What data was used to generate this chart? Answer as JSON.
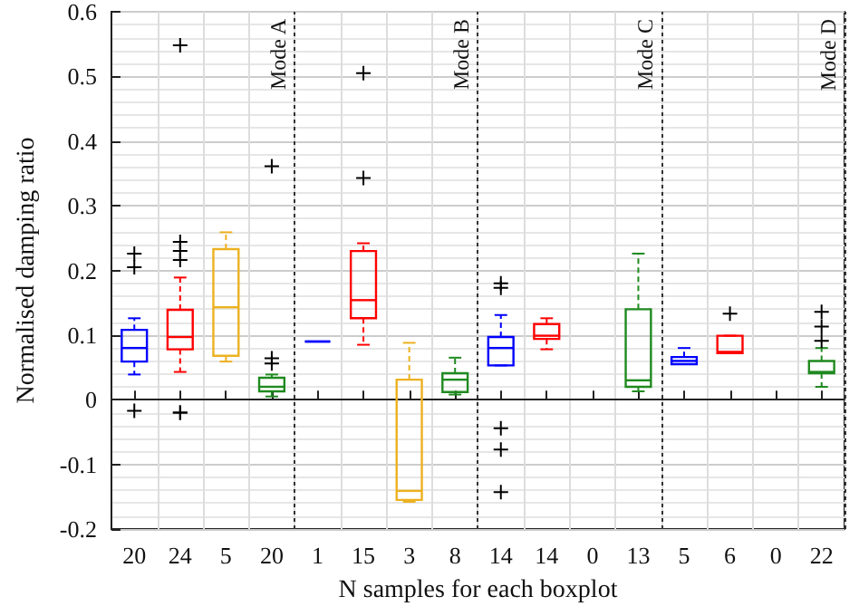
{
  "chart_data": {
    "type": "box",
    "ylabel": "Normalised damping ratio",
    "xlabel": "N samples for each boxplot",
    "ylim": [
      -0.2,
      0.6
    ],
    "yticks": [
      -0.2,
      -0.1,
      0,
      0.1,
      0.2,
      0.3,
      0.4,
      0.5,
      0.6
    ],
    "categories": [
      "20",
      "24",
      "5",
      "20",
      "1",
      "15",
      "3",
      "8",
      "14",
      "14",
      "0",
      "13",
      "5",
      "6",
      "0",
      "22"
    ],
    "grid": true,
    "series": [
      {
        "color": "#0000ff",
        "boxes": [
          {
            "low": 0.039,
            "q1": 0.059,
            "median": 0.08,
            "q3": 0.108,
            "high": 0.126,
            "outliers": [
              0.226,
              0.205,
              -0.017
            ]
          },
          null,
          null,
          null,
          {
            "low": 0.09,
            "q1": 0.09,
            "median": 0.09,
            "q3": 0.09,
            "high": 0.09
          },
          null,
          null,
          null,
          {
            "low": 0.053,
            "q1": 0.053,
            "median": 0.08,
            "q3": 0.097,
            "high": 0.131,
            "outliers": [
              0.18,
              0.173,
              -0.044,
              -0.077,
              -0.143
            ]
          },
          null,
          null,
          null,
          {
            "low": 0.055,
            "q1": 0.055,
            "median": 0.06,
            "q3": 0.066,
            "high": 0.08
          },
          null,
          null,
          null
        ]
      },
      {
        "color": "#ff0000",
        "boxes": [
          null,
          {
            "low": 0.043,
            "q1": 0.078,
            "median": 0.097,
            "q3": 0.139,
            "high": 0.189,
            "outliers": [
              0.548,
              0.244,
              0.23,
              0.216,
              -0.02,
              -0.02
            ]
          },
          null,
          null,
          null,
          {
            "low": 0.085,
            "q1": 0.126,
            "median": 0.154,
            "q3": 0.23,
            "high": 0.242,
            "outliers": [
              0.505,
              0.343
            ]
          },
          null,
          null,
          null,
          {
            "low": 0.078,
            "q1": 0.094,
            "median": 0.099,
            "q3": 0.117,
            "high": 0.126
          },
          null,
          null,
          null,
          {
            "low": 0.072,
            "q1": 0.072,
            "median": 0.074,
            "q3": 0.099,
            "high": 0.099,
            "outliers": [
              0.133
            ]
          },
          null,
          null
        ]
      },
      {
        "color": "#edb120",
        "boxes": [
          null,
          null,
          {
            "low": 0.059,
            "q1": 0.068,
            "median": 0.143,
            "q3": 0.233,
            "high": 0.259
          },
          null,
          null,
          null,
          {
            "low": -0.158,
            "q1": -0.155,
            "median": -0.141,
            "q3": 0.031,
            "high": 0.088
          },
          null,
          null,
          null,
          null,
          null,
          null,
          null,
          null,
          null
        ]
      },
      {
        "color": "#1f8a1f",
        "boxes": [
          null,
          null,
          null,
          {
            "low": 0.005,
            "q1": 0.013,
            "median": 0.02,
            "q3": 0.034,
            "high": 0.039,
            "outliers": [
              0.361,
              0.064,
              0.056
            ]
          },
          null,
          null,
          null,
          {
            "low": 0.008,
            "q1": 0.012,
            "median": 0.031,
            "q3": 0.041,
            "high": 0.065
          },
          null,
          null,
          null,
          {
            "low": 0.013,
            "q1": 0.02,
            "median": 0.03,
            "q3": 0.14,
            "high": 0.226
          },
          null,
          null,
          null,
          {
            "low": 0.02,
            "q1": 0.041,
            "median": 0.043,
            "q3": 0.06,
            "high": 0.08,
            "outliers": [
              0.136,
              0.113,
              0.091
            ]
          }
        ]
      }
    ],
    "annotations": [
      "Mode A",
      "Mode B",
      "Mode C",
      "Mode D"
    ]
  }
}
